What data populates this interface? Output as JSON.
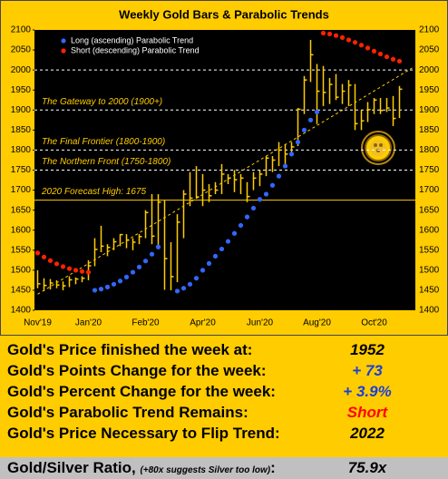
{
  "chart_data": {
    "type": "range-bar",
    "title": "Weekly Gold Bars & Parabolic Trends",
    "categories": [
      "Nov'19",
      null,
      null,
      null,
      null,
      null,
      null,
      null,
      "Jan'20",
      null,
      null,
      null,
      null,
      null,
      null,
      null,
      null,
      "Feb'20",
      null,
      null,
      null,
      null,
      null,
      null,
      null,
      null,
      "Apr'20",
      null,
      null,
      null,
      null,
      null,
      null,
      null,
      null,
      "Jun'20",
      null,
      null,
      null,
      null,
      null,
      null,
      null,
      null,
      "Aug'20",
      null,
      null,
      null,
      null,
      null,
      null,
      null,
      null,
      "Oct'20",
      null,
      null,
      null,
      null,
      null,
      null
    ],
    "high": [
      1500,
      1480,
      1478,
      1475,
      1472,
      1485,
      1482,
      1485,
      1525,
      1580,
      1611,
      1565,
      1580,
      1590,
      1590,
      1580,
      1590,
      1650,
      1690,
      1690,
      1675,
      1570,
      1640,
      1700,
      1745,
      1760,
      1740,
      1715,
      1720,
      1765,
      1740,
      1750,
      1740,
      1720,
      1745,
      1750,
      1785,
      1785,
      1820,
      1815,
      1820,
      1905,
      1985,
      2075,
      2015,
      2010,
      1980,
      1990,
      1965,
      1975,
      1965,
      1900,
      1920,
      1930,
      1930,
      1930,
      1935,
      1960,
      null,
      null
    ],
    "low": [
      1455,
      1448,
      1452,
      1455,
      1450,
      1458,
      1465,
      1470,
      1475,
      1510,
      1545,
      1535,
      1550,
      1560,
      1555,
      1550,
      1565,
      1580,
      1565,
      1560,
      1451,
      1450,
      1470,
      1580,
      1660,
      1680,
      1660,
      1670,
      1690,
      1690,
      1715,
      1695,
      1690,
      1670,
      1700,
      1710,
      1735,
      1745,
      1760,
      1765,
      1785,
      1810,
      1890,
      1970,
      1865,
      1910,
      1915,
      1925,
      1915,
      1910,
      1850,
      1850,
      1870,
      1890,
      1890,
      1895,
      1860,
      1880,
      null,
      null
    ],
    "close": [
      1466,
      1462,
      1468,
      1463,
      1461,
      1476,
      1478,
      1480,
      1511,
      1552,
      1560,
      1557,
      1571,
      1589,
      1575,
      1570,
      1584,
      1644,
      1585,
      1670,
      1529,
      1484,
      1620,
      1690,
      1680,
      1683,
      1700,
      1686,
      1700,
      1740,
      1730,
      1726,
      1730,
      1684,
      1730,
      1740,
      1780,
      1775,
      1800,
      1790,
      1808,
      1902,
      1975,
      2038,
      1947,
      1944,
      1964,
      1932,
      1947,
      1962,
      1866,
      1873,
      1901,
      1925,
      1899,
      1905,
      1879,
      1952,
      null,
      null
    ],
    "bar_color": "#ffcc00",
    "series": [
      {
        "name": "Long (ascending) Parabolic Trend",
        "color": "#3366ff",
        "values": [
          null,
          null,
          null,
          null,
          null,
          null,
          null,
          null,
          null,
          1450,
          1453,
          1458,
          1465,
          1473,
          1483,
          1495,
          1508,
          1523,
          1540,
          1558,
          null,
          null,
          1448,
          1455,
          1465,
          1480,
          1500,
          1517,
          1535,
          1553,
          1572,
          1592,
          1612,
          1633,
          1655,
          1677,
          1690,
          1712,
          1735,
          1760,
          1790,
          1820,
          1850,
          1875,
          1895,
          null,
          null,
          null,
          null,
          null,
          null,
          null,
          null,
          null,
          null,
          null,
          null,
          null,
          null,
          null
        ]
      },
      {
        "name": "Short (descending) Parabolic Trend",
        "color": "#ff2200",
        "values": [
          1543,
          1533,
          1524,
          1516,
          1509,
          1504,
          1500,
          1497,
          1495,
          null,
          null,
          null,
          null,
          null,
          null,
          null,
          null,
          null,
          null,
          null,
          null,
          null,
          null,
          null,
          null,
          null,
          null,
          null,
          null,
          null,
          null,
          null,
          null,
          null,
          null,
          null,
          null,
          null,
          null,
          null,
          null,
          null,
          null,
          null,
          null,
          2092,
          2090,
          2086,
          2081,
          2075,
          2069,
          2062,
          2055,
          2047,
          2040,
          2033,
          2027,
          2022,
          null,
          null
        ]
      }
    ],
    "trend_line": {
      "start": 1440,
      "end": 2005
    },
    "reference_lines": [
      {
        "value": 2000,
        "style": "dashed"
      },
      {
        "value": 1900,
        "style": "dashed",
        "label": "The Gateway to 2000 (1900+)"
      },
      {
        "value": 1800,
        "style": "dashed",
        "label": "The Final Frontier (1800-1900)"
      },
      {
        "value": 1750,
        "style": "dashed",
        "label": "The Northern Front (1750-1800)"
      },
      {
        "value": 1675,
        "style": "solid",
        "label": "2020 Forecast High: 1675"
      }
    ],
    "ylim": [
      1400,
      2100
    ],
    "yticks": [
      1400,
      1450,
      1500,
      1550,
      1600,
      1650,
      1700,
      1750,
      1800,
      1850,
      1900,
      1950,
      2000,
      2050,
      2100
    ],
    "legend": "top-left"
  },
  "summary": {
    "rows": [
      {
        "label": "Gold's Price finished the week at:",
        "value": "1952",
        "color": "#000000"
      },
      {
        "label": "Gold's Points Change for the week:",
        "value": "+ 73",
        "color": "#1a3fd6"
      },
      {
        "label": "Gold's Percent Change for the week:",
        "value": "+ 3.9%",
        "color": "#1a3fd6"
      },
      {
        "label": "Gold's Parabolic Trend Remains:",
        "value": "Short",
        "color": "#ff0000"
      },
      {
        "label": "Gold's Price Necessary to Flip Trend:",
        "value": "2022",
        "color": "#000000"
      }
    ],
    "ratio": {
      "label": "Gold/Silver Ratio,",
      "note": "(+80x suggests Silver too low)",
      "separator": ":",
      "value": "75.9x"
    }
  }
}
